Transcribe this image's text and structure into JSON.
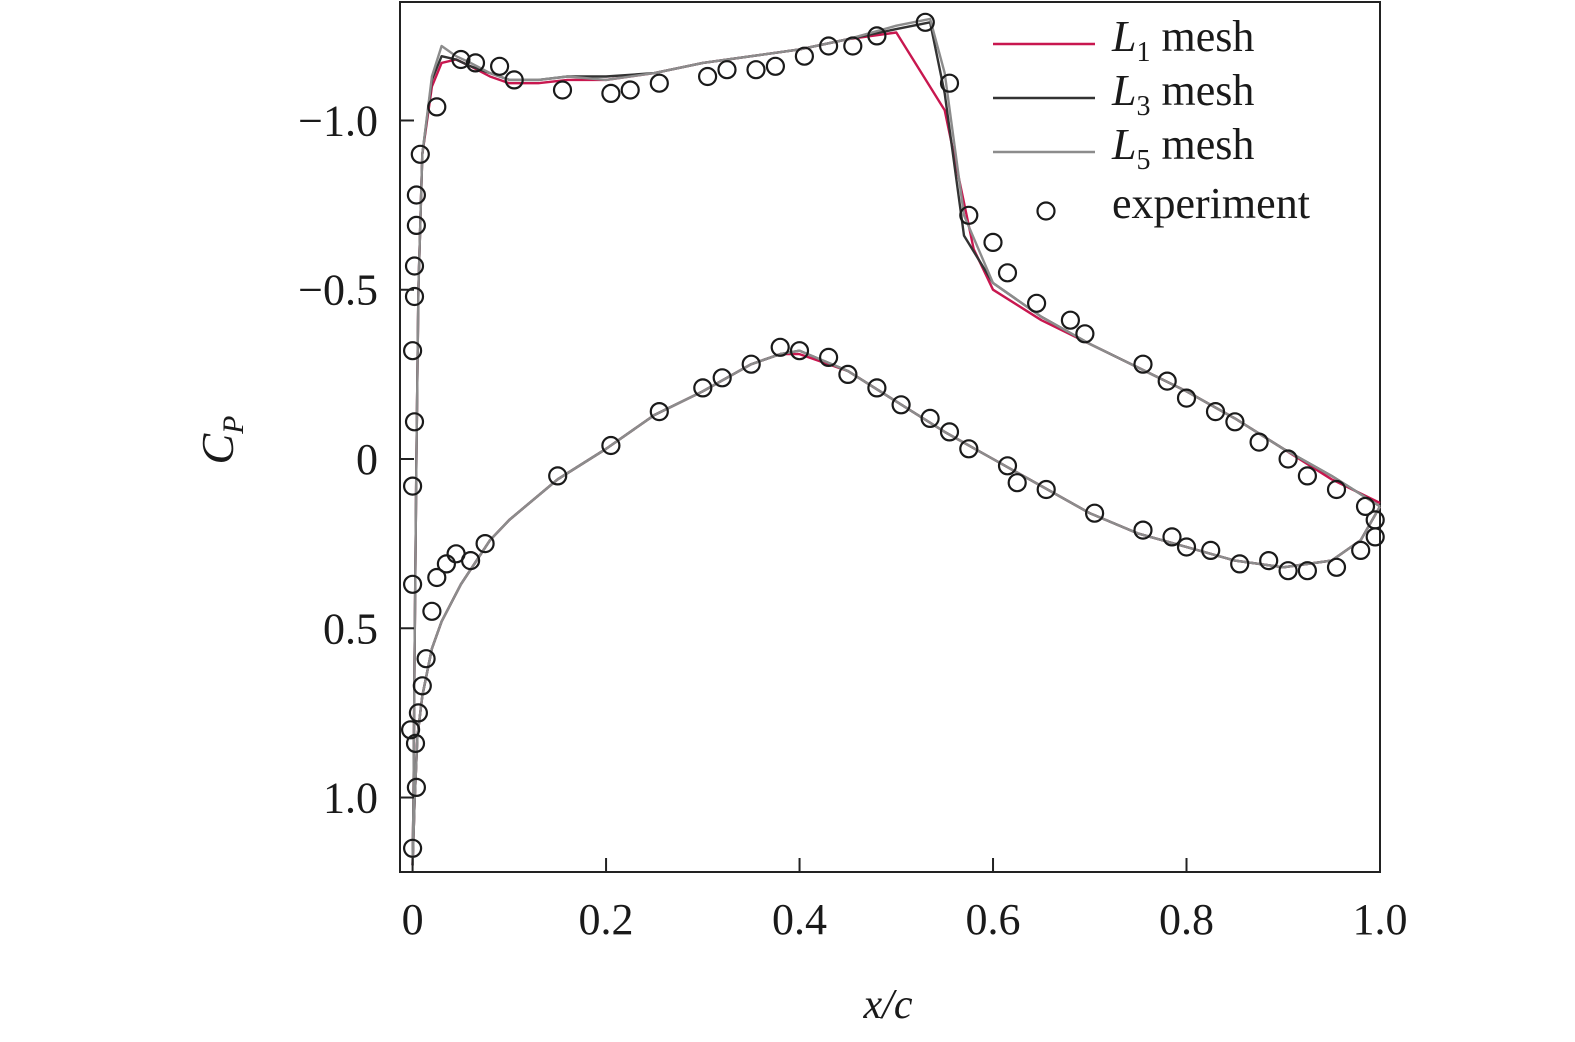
{
  "chart_data": {
    "type": "line",
    "xlabel": "x/c",
    "ylabel": {
      "main": "C",
      "sub": "P"
    },
    "xlim": [
      -0.013,
      1.0
    ],
    "ylim": [
      -1.35,
      1.22
    ],
    "y_inverted": true,
    "x_ticks": [
      {
        "value": 0,
        "label": "0"
      },
      {
        "value": 0.2,
        "label": "0.2"
      },
      {
        "value": 0.4,
        "label": "0.4"
      },
      {
        "value": 0.6,
        "label": "0.6"
      },
      {
        "value": 0.8,
        "label": "0.8"
      },
      {
        "value": 1.0,
        "label": "1.0"
      }
    ],
    "y_ticks": [
      {
        "value": -1.0,
        "label": "−1.0"
      },
      {
        "value": -0.5,
        "label": "−0.5"
      },
      {
        "value": 0,
        "label": "0"
      },
      {
        "value": 0.5,
        "label": "0.5"
      },
      {
        "value": 1.0,
        "label": "1.0"
      }
    ],
    "grid": false,
    "legend_position": "top-right",
    "legend": [
      {
        "main": "L",
        "sub": "1",
        "rest": " mesh",
        "kind": "line",
        "color": "#c8174f"
      },
      {
        "main": "L",
        "sub": "3",
        "rest": " mesh",
        "kind": "line",
        "color": "#333333"
      },
      {
        "main": "L",
        "sub": "5",
        "rest": " mesh",
        "kind": "line",
        "color": "#8c8c8c"
      },
      {
        "main": "",
        "sub": "",
        "rest": "experiment",
        "kind": "marker",
        "color": "#1a1a1a"
      }
    ],
    "series": [
      {
        "name": "L1 mesh",
        "color": "#c8174f",
        "upper": [
          [
            0,
            1.2
          ],
          [
            0.001,
            1.0
          ],
          [
            0.002,
            0.6
          ],
          [
            0.004,
            0.0
          ],
          [
            0.006,
            -0.5
          ],
          [
            0.01,
            -0.9
          ],
          [
            0.02,
            -1.1
          ],
          [
            0.03,
            -1.17
          ],
          [
            0.045,
            -1.18
          ],
          [
            0.06,
            -1.16
          ],
          [
            0.08,
            -1.13
          ],
          [
            0.1,
            -1.11
          ],
          [
            0.13,
            -1.11
          ],
          [
            0.16,
            -1.12
          ],
          [
            0.2,
            -1.12
          ],
          [
            0.25,
            -1.14
          ],
          [
            0.3,
            -1.17
          ],
          [
            0.35,
            -1.19
          ],
          [
            0.4,
            -1.21
          ],
          [
            0.45,
            -1.24
          ],
          [
            0.5,
            -1.26
          ],
          [
            0.55,
            -1.03
          ],
          [
            0.58,
            -0.62
          ],
          [
            0.6,
            -0.5
          ],
          [
            0.65,
            -0.41
          ],
          [
            0.7,
            -0.34
          ],
          [
            0.75,
            -0.27
          ],
          [
            0.8,
            -0.2
          ],
          [
            0.85,
            -0.12
          ],
          [
            0.9,
            -0.03
          ],
          [
            0.95,
            0.06
          ],
          [
            1.0,
            0.13
          ]
        ],
        "lower": [
          [
            0,
            1.2
          ],
          [
            0.002,
            1.02
          ],
          [
            0.005,
            0.82
          ],
          [
            0.01,
            0.7
          ],
          [
            0.02,
            0.56
          ],
          [
            0.03,
            0.48
          ],
          [
            0.05,
            0.37
          ],
          [
            0.08,
            0.24
          ],
          [
            0.1,
            0.18
          ],
          [
            0.15,
            0.06
          ],
          [
            0.2,
            -0.03
          ],
          [
            0.25,
            -0.13
          ],
          [
            0.3,
            -0.2
          ],
          [
            0.35,
            -0.28
          ],
          [
            0.38,
            -0.31
          ],
          [
            0.4,
            -0.31
          ],
          [
            0.45,
            -0.26
          ],
          [
            0.5,
            -0.17
          ],
          [
            0.55,
            -0.08
          ],
          [
            0.6,
            0.0
          ],
          [
            0.65,
            0.08
          ],
          [
            0.7,
            0.16
          ],
          [
            0.75,
            0.22
          ],
          [
            0.8,
            0.26
          ],
          [
            0.85,
            0.3
          ],
          [
            0.9,
            0.32
          ],
          [
            0.95,
            0.3
          ],
          [
            0.98,
            0.24
          ],
          [
            1.0,
            0.14
          ]
        ]
      },
      {
        "name": "L3 mesh",
        "color": "#333333",
        "upper": [
          [
            0,
            1.2
          ],
          [
            0.001,
            1.0
          ],
          [
            0.002,
            0.6
          ],
          [
            0.004,
            0.0
          ],
          [
            0.006,
            -0.5
          ],
          [
            0.01,
            -0.9
          ],
          [
            0.02,
            -1.12
          ],
          [
            0.03,
            -1.19
          ],
          [
            0.045,
            -1.18
          ],
          [
            0.06,
            -1.16
          ],
          [
            0.08,
            -1.14
          ],
          [
            0.1,
            -1.12
          ],
          [
            0.13,
            -1.12
          ],
          [
            0.16,
            -1.13
          ],
          [
            0.2,
            -1.13
          ],
          [
            0.25,
            -1.14
          ],
          [
            0.3,
            -1.17
          ],
          [
            0.35,
            -1.19
          ],
          [
            0.4,
            -1.21
          ],
          [
            0.45,
            -1.24
          ],
          [
            0.5,
            -1.27
          ],
          [
            0.535,
            -1.29
          ],
          [
            0.55,
            -1.08
          ],
          [
            0.57,
            -0.66
          ],
          [
            0.6,
            -0.52
          ],
          [
            0.65,
            -0.42
          ],
          [
            0.7,
            -0.34
          ],
          [
            0.75,
            -0.27
          ],
          [
            0.8,
            -0.2
          ],
          [
            0.85,
            -0.12
          ],
          [
            0.9,
            -0.03
          ],
          [
            0.95,
            0.05
          ],
          [
            1.0,
            0.14
          ]
        ],
        "lower": [
          [
            0,
            1.2
          ],
          [
            0.002,
            1.02
          ],
          [
            0.005,
            0.82
          ],
          [
            0.01,
            0.7
          ],
          [
            0.02,
            0.56
          ],
          [
            0.03,
            0.48
          ],
          [
            0.05,
            0.37
          ],
          [
            0.08,
            0.24
          ],
          [
            0.1,
            0.18
          ],
          [
            0.15,
            0.06
          ],
          [
            0.2,
            -0.03
          ],
          [
            0.25,
            -0.13
          ],
          [
            0.3,
            -0.2
          ],
          [
            0.35,
            -0.28
          ],
          [
            0.38,
            -0.31
          ],
          [
            0.4,
            -0.32
          ],
          [
            0.45,
            -0.26
          ],
          [
            0.5,
            -0.17
          ],
          [
            0.55,
            -0.08
          ],
          [
            0.6,
            0.0
          ],
          [
            0.65,
            0.08
          ],
          [
            0.7,
            0.16
          ],
          [
            0.75,
            0.22
          ],
          [
            0.8,
            0.26
          ],
          [
            0.85,
            0.3
          ],
          [
            0.9,
            0.32
          ],
          [
            0.95,
            0.3
          ],
          [
            0.98,
            0.24
          ],
          [
            1.0,
            0.14
          ]
        ]
      },
      {
        "name": "L5 mesh",
        "color": "#8c8c8c",
        "upper": [
          [
            0,
            1.2
          ],
          [
            0.001,
            1.0
          ],
          [
            0.002,
            0.6
          ],
          [
            0.004,
            0.0
          ],
          [
            0.006,
            -0.5
          ],
          [
            0.01,
            -0.9
          ],
          [
            0.02,
            -1.13
          ],
          [
            0.03,
            -1.22
          ],
          [
            0.045,
            -1.19
          ],
          [
            0.06,
            -1.17
          ],
          [
            0.08,
            -1.14
          ],
          [
            0.1,
            -1.12
          ],
          [
            0.13,
            -1.12
          ],
          [
            0.16,
            -1.13
          ],
          [
            0.2,
            -1.12
          ],
          [
            0.25,
            -1.14
          ],
          [
            0.3,
            -1.17
          ],
          [
            0.35,
            -1.19
          ],
          [
            0.4,
            -1.21
          ],
          [
            0.45,
            -1.24
          ],
          [
            0.5,
            -1.28
          ],
          [
            0.535,
            -1.3
          ],
          [
            0.55,
            -1.14
          ],
          [
            0.57,
            -0.72
          ],
          [
            0.6,
            -0.52
          ],
          [
            0.65,
            -0.42
          ],
          [
            0.7,
            -0.34
          ],
          [
            0.75,
            -0.27
          ],
          [
            0.8,
            -0.2
          ],
          [
            0.85,
            -0.12
          ],
          [
            0.9,
            -0.03
          ],
          [
            0.95,
            0.05
          ],
          [
            1.0,
            0.14
          ]
        ],
        "lower": [
          [
            0,
            1.2
          ],
          [
            0.002,
            1.02
          ],
          [
            0.005,
            0.82
          ],
          [
            0.01,
            0.7
          ],
          [
            0.02,
            0.56
          ],
          [
            0.03,
            0.48
          ],
          [
            0.05,
            0.37
          ],
          [
            0.08,
            0.24
          ],
          [
            0.1,
            0.18
          ],
          [
            0.15,
            0.06
          ],
          [
            0.2,
            -0.03
          ],
          [
            0.25,
            -0.13
          ],
          [
            0.3,
            -0.2
          ],
          [
            0.35,
            -0.28
          ],
          [
            0.38,
            -0.31
          ],
          [
            0.4,
            -0.32
          ],
          [
            0.45,
            -0.26
          ],
          [
            0.5,
            -0.17
          ],
          [
            0.55,
            -0.08
          ],
          [
            0.6,
            0.0
          ],
          [
            0.65,
            0.08
          ],
          [
            0.7,
            0.16
          ],
          [
            0.75,
            0.22
          ],
          [
            0.8,
            0.26
          ],
          [
            0.85,
            0.3
          ],
          [
            0.9,
            0.32
          ],
          [
            0.95,
            0.3
          ],
          [
            0.98,
            0.24
          ],
          [
            1.0,
            0.14
          ]
        ]
      }
    ],
    "experiment": [
      [
        0.0,
        1.15
      ],
      [
        0.004,
        0.97
      ],
      [
        0.003,
        0.84
      ],
      [
        0.006,
        0.75
      ],
      [
        -0.002,
        0.8
      ],
      [
        0.01,
        0.67
      ],
      [
        0.014,
        0.59
      ],
      [
        0.02,
        0.45
      ],
      [
        0.025,
        0.35
      ],
      [
        0.035,
        0.31
      ],
      [
        0.045,
        0.28
      ],
      [
        0.0,
        0.37
      ],
      [
        0.0,
        0.08
      ],
      [
        0.002,
        -0.11
      ],
      [
        0.0,
        -0.32
      ],
      [
        0.002,
        -0.48
      ],
      [
        0.002,
        -0.57
      ],
      [
        0.004,
        -0.69
      ],
      [
        0.004,
        -0.78
      ],
      [
        0.008,
        -0.9
      ],
      [
        0.025,
        -1.04
      ],
      [
        0.05,
        -1.18
      ],
      [
        0.065,
        -1.17
      ],
      [
        0.09,
        -1.16
      ],
      [
        0.105,
        -1.12
      ],
      [
        0.155,
        -1.09
      ],
      [
        0.205,
        -1.08
      ],
      [
        0.225,
        -1.09
      ],
      [
        0.255,
        -1.11
      ],
      [
        0.305,
        -1.13
      ],
      [
        0.325,
        -1.15
      ],
      [
        0.355,
        -1.15
      ],
      [
        0.375,
        -1.16
      ],
      [
        0.405,
        -1.19
      ],
      [
        0.43,
        -1.22
      ],
      [
        0.455,
        -1.22
      ],
      [
        0.48,
        -1.25
      ],
      [
        0.53,
        -1.29
      ],
      [
        0.555,
        -1.11
      ],
      [
        0.575,
        -0.72
      ],
      [
        0.6,
        -0.64
      ],
      [
        0.615,
        -0.55
      ],
      [
        0.645,
        -0.46
      ],
      [
        0.68,
        -0.41
      ],
      [
        0.695,
        -0.37
      ],
      [
        0.755,
        -0.28
      ],
      [
        0.78,
        -0.23
      ],
      [
        0.8,
        -0.18
      ],
      [
        0.83,
        -0.14
      ],
      [
        0.85,
        -0.11
      ],
      [
        0.875,
        -0.05
      ],
      [
        0.905,
        0.0
      ],
      [
        0.925,
        0.05
      ],
      [
        0.955,
        0.09
      ],
      [
        0.985,
        0.14
      ],
      [
        0.995,
        0.18
      ],
      [
        0.995,
        0.23
      ],
      [
        0.98,
        0.27
      ],
      [
        0.955,
        0.32
      ],
      [
        0.925,
        0.33
      ],
      [
        0.905,
        0.33
      ],
      [
        0.885,
        0.3
      ],
      [
        0.855,
        0.31
      ],
      [
        0.825,
        0.27
      ],
      [
        0.8,
        0.26
      ],
      [
        0.785,
        0.23
      ],
      [
        0.755,
        0.21
      ],
      [
        0.705,
        0.16
      ],
      [
        0.655,
        0.09
      ],
      [
        0.625,
        0.07
      ],
      [
        0.615,
        0.02
      ],
      [
        0.575,
        -0.03
      ],
      [
        0.555,
        -0.08
      ],
      [
        0.535,
        -0.12
      ],
      [
        0.505,
        -0.16
      ],
      [
        0.48,
        -0.21
      ],
      [
        0.45,
        -0.25
      ],
      [
        0.43,
        -0.3
      ],
      [
        0.4,
        -0.32
      ],
      [
        0.38,
        -0.33
      ],
      [
        0.35,
        -0.28
      ],
      [
        0.32,
        -0.24
      ],
      [
        0.3,
        -0.21
      ],
      [
        0.255,
        -0.14
      ],
      [
        0.205,
        -0.04
      ],
      [
        0.15,
        0.05
      ],
      [
        0.075,
        0.25
      ],
      [
        0.06,
        0.3
      ]
    ]
  }
}
